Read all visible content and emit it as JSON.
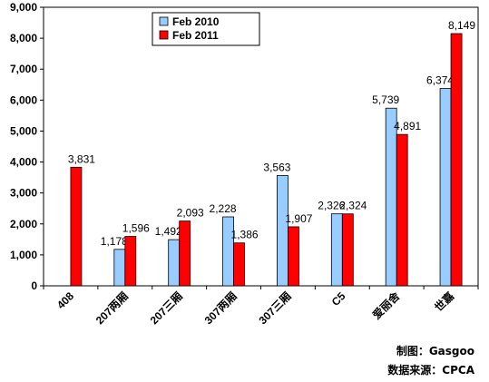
{
  "chart_data": {
    "type": "bar",
    "categories": [
      "408",
      "207两厢",
      "207三厢",
      "307两厢",
      "307三厢",
      "C5",
      "爱丽舍",
      "世嘉"
    ],
    "series": [
      {
        "name": "Feb 2010",
        "color": "#99ccff",
        "values": [
          0,
          1178,
          1492,
          2228,
          3563,
          2326,
          5739,
          6374
        ],
        "labels": [
          "",
          "1,178",
          "1,492",
          "2,228",
          "3,563",
          "2,326",
          "5,739",
          "6,374"
        ]
      },
      {
        "name": "Feb 2011",
        "color": "#ff0000",
        "values": [
          3831,
          1596,
          2093,
          1386,
          1907,
          2324,
          4891,
          8149
        ],
        "labels": [
          "3,831",
          "1,596",
          "2,093",
          "1,386",
          "1,907",
          "2,324",
          "4,891",
          "8,149"
        ]
      }
    ],
    "ylim": [
      0,
      9000
    ],
    "yticks": [
      0,
      1000,
      2000,
      3000,
      4000,
      5000,
      6000,
      7000,
      8000,
      9000
    ],
    "ytick_labels": [
      "0",
      "1,000",
      "2,000",
      "3,000",
      "4,000",
      "5,000",
      "6,000",
      "7,000",
      "8,000",
      "9,000"
    ],
    "legend": "top-left",
    "grid": false
  },
  "credits": {
    "maker": "制图：Gasgoo",
    "source": "数据来源：CPCA"
  }
}
